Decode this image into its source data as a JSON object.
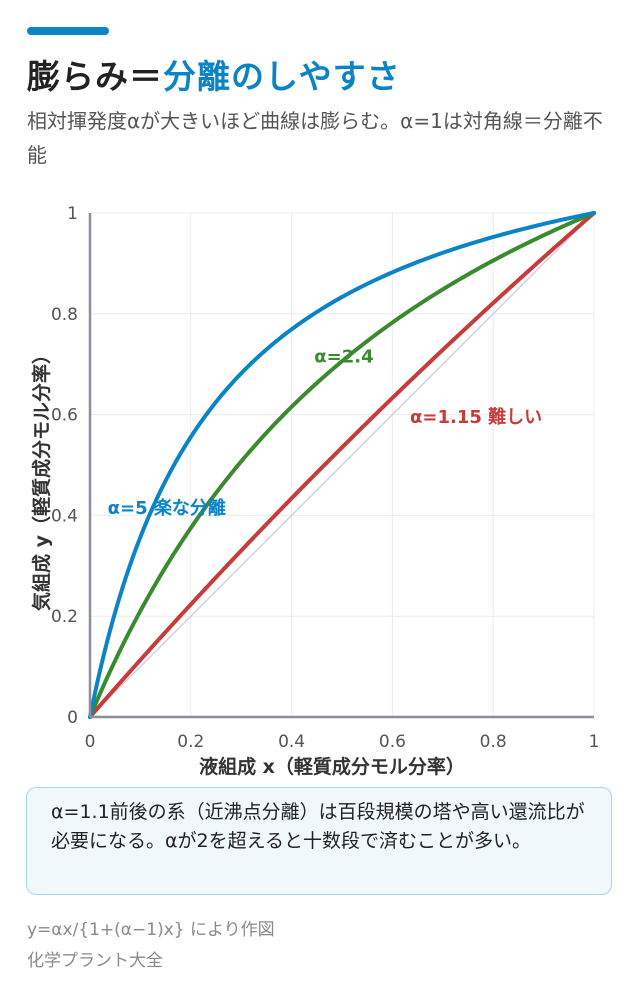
{
  "header": {
    "title_part1": "膨らみ＝",
    "title_part2": "分離のしやすさ",
    "subtitle": "相対揮発度αが大きいほど曲線は膨らむ。α=1は対角線＝分離不能"
  },
  "colors": {
    "accent": "#0a84c6",
    "alpha5": "#0a84c6",
    "alpha24": "#3a8a2e",
    "alpha115": "#c73b3b",
    "diagonal": "#cfd4de",
    "axis": "#8a8f99",
    "grid": "#e9ecf1"
  },
  "chart_data": {
    "type": "line",
    "title": "",
    "xlabel": "液組成 x（軽質成分モル分率）",
    "ylabel": "気組成 y（軽質成分モル分率）",
    "xlim": [
      0,
      1
    ],
    "ylim": [
      0,
      1
    ],
    "x_ticks": [
      "0",
      "0.2",
      "0.4",
      "0.6",
      "0.8",
      "1"
    ],
    "y_ticks": [
      "0",
      "0.2",
      "0.4",
      "0.6",
      "0.8",
      "1"
    ],
    "grid": true,
    "formula": "y = αx / (1 + (α − 1)x)",
    "series": [
      {
        "name": "α=5 楽な分離",
        "alpha": 5,
        "color": "#0a84c6",
        "x": [
          0,
          0.1,
          0.2,
          0.3,
          0.4,
          0.5,
          0.6,
          0.7,
          0.8,
          0.9,
          1
        ],
        "y": [
          0,
          0.357,
          0.556,
          0.682,
          0.769,
          0.833,
          0.882,
          0.921,
          0.952,
          0.978,
          1
        ]
      },
      {
        "name": "α=2.4",
        "alpha": 2.4,
        "color": "#3a8a2e",
        "x": [
          0,
          0.1,
          0.2,
          0.3,
          0.4,
          0.5,
          0.6,
          0.7,
          0.8,
          0.9,
          1
        ],
        "y": [
          0,
          0.211,
          0.375,
          0.507,
          0.615,
          0.706,
          0.783,
          0.848,
          0.906,
          0.956,
          1
        ]
      },
      {
        "name": "α=1.15 難しい",
        "alpha": 1.15,
        "color": "#c73b3b",
        "x": [
          0,
          0.1,
          0.2,
          0.3,
          0.4,
          0.5,
          0.6,
          0.7,
          0.8,
          0.9,
          1
        ],
        "y": [
          0,
          0.113,
          0.223,
          0.33,
          0.434,
          0.535,
          0.633,
          0.728,
          0.821,
          0.912,
          1
        ]
      },
      {
        "alpha": 1,
        "color": "#cfd4de",
        "x": [
          0,
          1
        ],
        "y": [
          0,
          1
        ]
      }
    ]
  },
  "note": {
    "text": "α=1.1前後の系（近沸点分離）は百段規模の塔や高い還流比が必要になる。αが2を超えると十数段で済むことが多い。"
  },
  "footer": {
    "formula": "y=αx/{1+(α−1)x} により作図",
    "source": "化学プラント大全"
  }
}
